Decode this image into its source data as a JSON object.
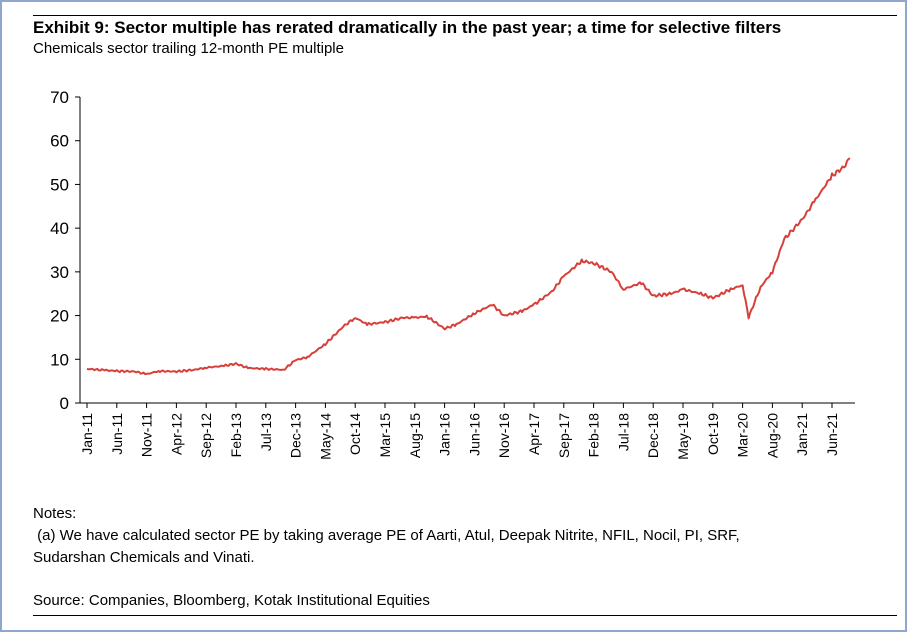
{
  "exhibit": {
    "title": "Exhibit 9: Sector multiple has rerated dramatically in the past year; a time for selective filters",
    "subtitle": "Chemicals sector trailing 12-month PE multiple"
  },
  "notes": {
    "heading": "Notes:",
    "line1": " (a) We have calculated sector PE by taking average PE of Aarti, Atul, Deepak Nitrite, NFIL, Nocil, PI, SRF,",
    "line2": "Sudarshan Chemicals and Vinati."
  },
  "source": "Source: Companies, Bloomberg, Kotak Institutional Equities",
  "colors": {
    "series": "#d7403a",
    "axis": "#000000",
    "frame": "#8fa6cf"
  },
  "chart_data": {
    "type": "line",
    "title": "Exhibit 9: Sector multiple has rerated dramatically in the past year; a time for selective filters",
    "subtitle": "Chemicals sector trailing 12-month PE multiple",
    "ylim": [
      0,
      70
    ],
    "yticks": [
      0,
      10,
      20,
      30,
      40,
      50,
      60,
      70
    ],
    "xlabels": [
      "Jan-11",
      "Jun-11",
      "Nov-11",
      "Apr-12",
      "Sep-12",
      "Feb-13",
      "Jul-13",
      "Dec-13",
      "May-14",
      "Oct-14",
      "Mar-15",
      "Aug-15",
      "Jan-16",
      "Jun-16",
      "Nov-16",
      "Apr-17",
      "Sep-17",
      "Feb-18",
      "Jul-18",
      "Dec-18",
      "May-19",
      "Oct-19",
      "Mar-20",
      "Aug-20",
      "Jan-21",
      "Jun-21"
    ],
    "grid": false,
    "legend": "none",
    "series": [
      {
        "x": [
          "Jan-11",
          "Apr-11",
          "Jun-11",
          "Sep-11",
          "Nov-11",
          "Jan-12",
          "Apr-12",
          "Jul-12",
          "Sep-12",
          "Dec-12",
          "Feb-13",
          "Apr-13",
          "Jul-13",
          "Oct-13",
          "Dec-13",
          "Feb-14",
          "May-14",
          "Aug-14",
          "Oct-14",
          "Dec-14",
          "Mar-15",
          "Jun-15",
          "Aug-15",
          "Oct-15",
          "Jan-16",
          "Mar-16",
          "Jun-16",
          "Sep-16",
          "Nov-16",
          "Feb-17",
          "Apr-17",
          "Jul-17",
          "Sep-17",
          "Dec-17",
          "Feb-18",
          "May-18",
          "Jul-18",
          "Oct-18",
          "Dec-18",
          "Mar-19",
          "May-19",
          "Aug-19",
          "Oct-19",
          "Jan-20",
          "Mar-20",
          "Apr-20",
          "Jun-20",
          "Aug-20",
          "Oct-20",
          "Jan-21",
          "Mar-21",
          "Jun-21",
          "Aug-21",
          "Sep-21"
        ],
        "values": [
          7.8,
          7.5,
          7.3,
          7.2,
          6.6,
          7.3,
          7.2,
          7.6,
          8.1,
          8.5,
          9.0,
          8.0,
          7.8,
          7.6,
          9.8,
          10.5,
          13.5,
          17.5,
          19.5,
          18.0,
          18.5,
          19.5,
          19.5,
          19.8,
          17.0,
          18.0,
          20.5,
          22.5,
          20.0,
          21.0,
          22.5,
          25.5,
          29.0,
          32.5,
          32.0,
          30.0,
          26.0,
          27.5,
          24.5,
          25.0,
          26.0,
          25.0,
          24.0,
          26.0,
          27.0,
          19.5,
          26.5,
          30.0,
          37.5,
          42.0,
          46.0,
          52.0,
          54.0,
          56.0
        ]
      }
    ]
  }
}
